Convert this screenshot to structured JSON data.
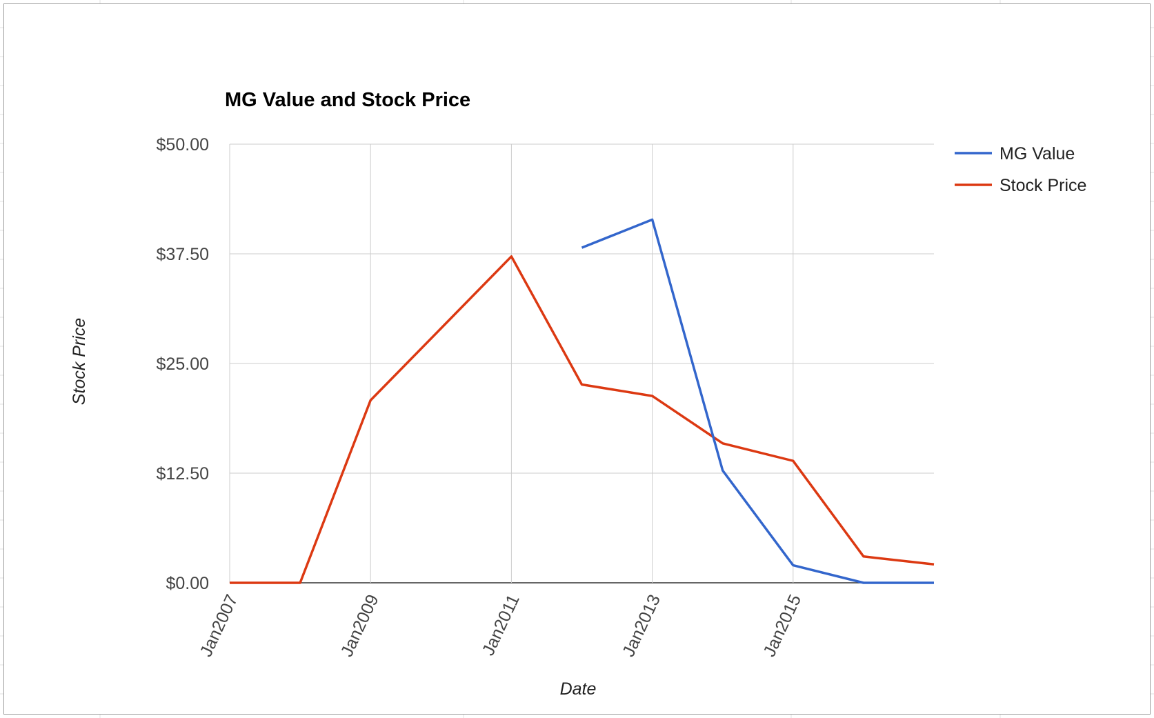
{
  "chart_data": {
    "type": "line",
    "title": "MG Value and Stock Price",
    "xlabel": "Date",
    "ylabel": "Stock Price",
    "x_ticks": [
      "Jan2007",
      "Jan2009",
      "Jan2011",
      "Jan2013",
      "Jan2015"
    ],
    "x": [
      "2007-01",
      "2008-01",
      "2009-01",
      "2010-01",
      "2011-01",
      "2012-01",
      "2013-01",
      "2014-01",
      "2015-01",
      "2016-01",
      "2017-01"
    ],
    "y_ticks": [
      "$0.00",
      "$12.50",
      "$25.00",
      "$37.50",
      "$50.00"
    ],
    "ylim": [
      0,
      50
    ],
    "grid": true,
    "legend_position": "right",
    "series": [
      {
        "name": "MG Value",
        "color": "#3366cc",
        "values": [
          null,
          null,
          null,
          null,
          null,
          38.2,
          41.4,
          12.8,
          2.0,
          0.0,
          0.0
        ]
      },
      {
        "name": "Stock Price",
        "color": "#dc3912",
        "values": [
          0.0,
          0.0,
          20.8,
          29.0,
          37.2,
          22.6,
          21.3,
          15.9,
          13.9,
          3.0,
          2.1
        ]
      }
    ]
  }
}
